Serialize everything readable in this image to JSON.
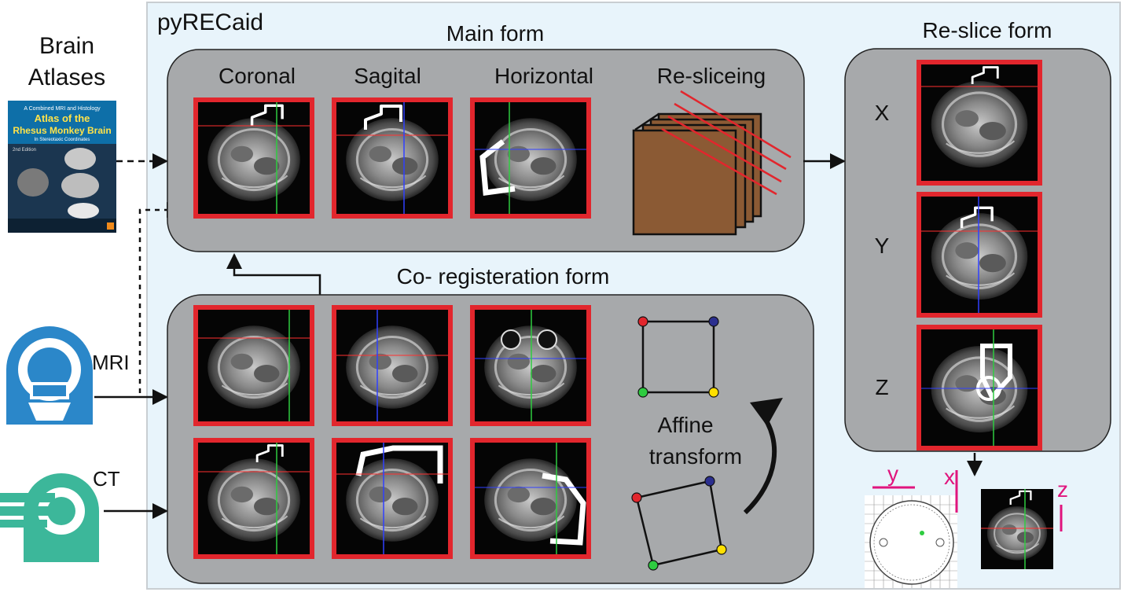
{
  "app_title": "pyRECaid",
  "left": {
    "atlas_label_line1": "Brain",
    "atlas_label_line2": "Atlases",
    "book": {
      "top_line": "A Combined MRI and Histology",
      "title_line1": "Atlas of the",
      "title_line2": "Rhesus Monkey Brain",
      "subtitle": "In Stereotaxic Coordinates",
      "edition": "2nd Edition"
    },
    "mri_label": "MRI",
    "ct_label": "CT"
  },
  "main_form": {
    "title": "Main form",
    "views": [
      "Coronal",
      "Sagital",
      "Horizontal",
      "Re-sliceing"
    ]
  },
  "coreg_form": {
    "title": "Co- registeration form",
    "affine_line1": "Affine",
    "affine_line2": "transform"
  },
  "reslice_form": {
    "title": "Re-slice form",
    "axes": [
      "X",
      "Y",
      "Z"
    ]
  },
  "output": {
    "y_label": "y",
    "x_label": "x",
    "z_label": "z"
  },
  "colors": {
    "panel_bg": "#e8f4fb",
    "form_gray": "#a7a9ab",
    "frame_red": "#e2262d",
    "crosshair_green": "#2ecc40",
    "crosshair_red": "#ff3030",
    "crosshair_blue": "#3040ff",
    "cube_brown": "#8b5a34",
    "mri_blue": "#2b87c9",
    "ct_teal": "#3cb79a",
    "magenta": "#e0157d"
  }
}
